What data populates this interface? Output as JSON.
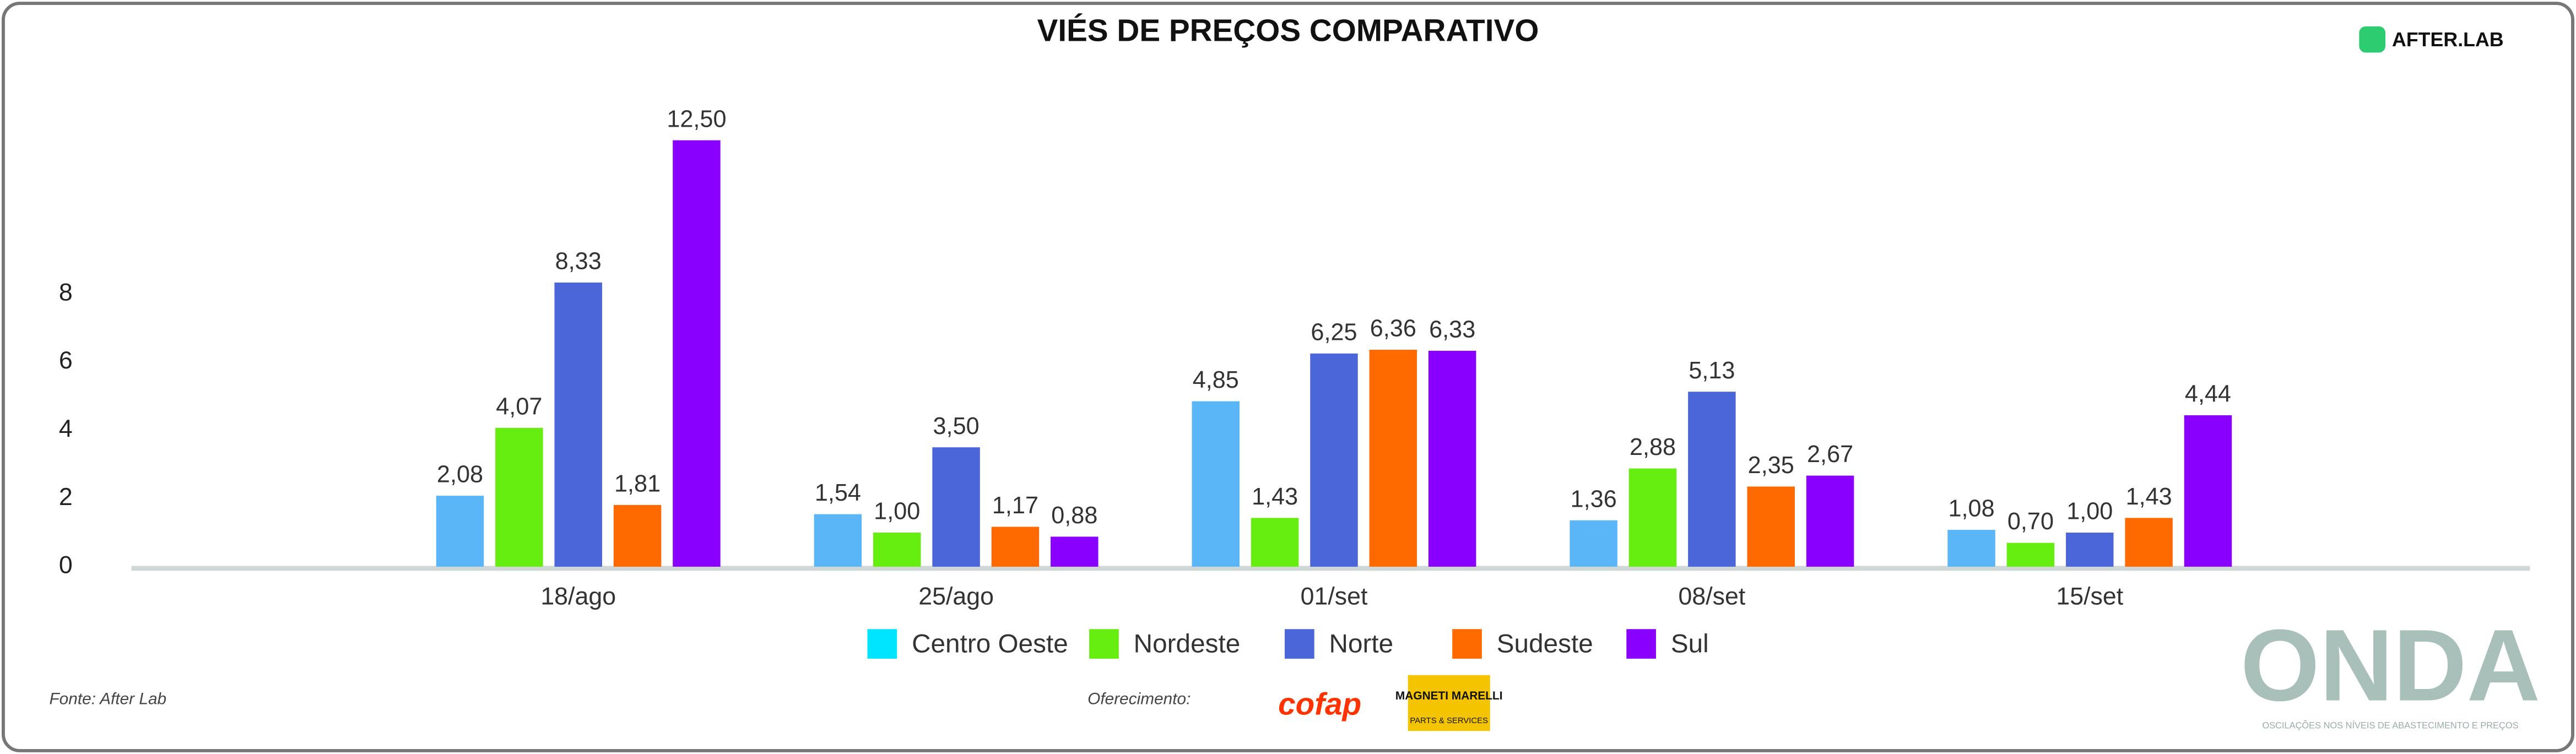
{
  "chart_data": {
    "type": "bar",
    "title": "VIÉS DE PREÇOS COMPARATIVO",
    "brand": "AFTER.LAB",
    "source": "Fonte: After Lab",
    "sponsor_label": "Oferecimento:",
    "sponsors": [
      "cofap",
      "MAGNETI MARELLI",
      "PARTS & SERVICES"
    ],
    "watermark": "ONDA",
    "watermark_subtitle": "OSCILAÇÕES NOS NÍVEIS DE ABASTECIMENTO E PREÇOS",
    "categories": [
      "18/ago",
      "25/ago",
      "01/set",
      "08/set",
      "15/set"
    ],
    "series": [
      {
        "name": "Centro Oeste",
        "color": "#5ab6f7",
        "legend_color": "#00e5ff",
        "values": [
          2.08,
          1.54,
          4.85,
          1.36,
          1.08
        ],
        "value_labels": [
          "2,08",
          "1,54",
          "4,85",
          "1,36",
          "1,08"
        ]
      },
      {
        "name": "Nordeste",
        "color": "#66ee11",
        "values": [
          4.07,
          1.0,
          1.43,
          2.88,
          0.7
        ],
        "value_labels": [
          "4,07",
          "1,00",
          "1,43",
          "2,88",
          "0,70"
        ]
      },
      {
        "name": "Norte",
        "color": "#4a66d8",
        "values": [
          8.33,
          3.5,
          6.25,
          5.13,
          1.0
        ],
        "value_labels": [
          "8,33",
          "3,50",
          "6,25",
          "5,13",
          "1,00"
        ]
      },
      {
        "name": "Sudeste",
        "color": "#ff6a00",
        "values": [
          1.81,
          1.17,
          6.36,
          2.35,
          1.43
        ],
        "value_labels": [
          "1,81",
          "1,17",
          "6,36",
          "2,35",
          "1,43"
        ]
      },
      {
        "name": "Sul",
        "color": "#8a00ff",
        "values": [
          12.5,
          0.88,
          6.33,
          2.67,
          4.44
        ],
        "value_labels": [
          "12,50",
          "0,88",
          "6,33",
          "2,67",
          "4,44"
        ]
      }
    ],
    "ylim": [
      0,
      13
    ],
    "yticks": [
      0,
      2,
      4,
      6,
      8
    ],
    "grid": false
  }
}
